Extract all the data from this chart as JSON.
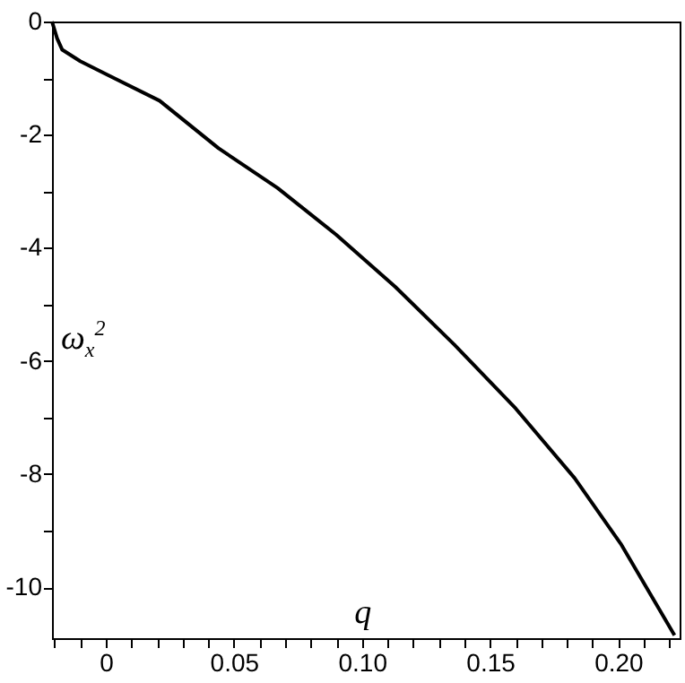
{
  "chart_data": {
    "type": "line",
    "xlabel": "q",
    "ylabel": "ω$_{x}$$^{2}$",
    "xlim": [
      -0.021,
      0.224
    ],
    "ylim": [
      -10.9,
      0
    ],
    "xticks": [
      {
        "value": -0.02,
        "label": null
      },
      {
        "value": -0.01,
        "label": null
      },
      0,
      {
        "value": 0.01,
        "label": null
      },
      {
        "value": 0.02,
        "label": null
      },
      {
        "value": 0.03,
        "label": null
      },
      {
        "value": 0.04,
        "label": null
      },
      0.05,
      {
        "value": 0.06,
        "label": null
      },
      {
        "value": 0.07,
        "label": null
      },
      {
        "value": 0.08,
        "label": null
      },
      {
        "value": 0.09,
        "label": null
      },
      {
        "value": 0.1,
        "label": "0.10"
      },
      {
        "value": 0.11,
        "label": null
      },
      {
        "value": 0.12,
        "label": null
      },
      {
        "value": 0.13,
        "label": null
      },
      {
        "value": 0.14,
        "label": null
      },
      0.15,
      {
        "value": 0.16,
        "label": null
      },
      {
        "value": 0.17,
        "label": null
      },
      {
        "value": 0.18,
        "label": null
      },
      {
        "value": 0.19,
        "label": null
      },
      {
        "value": 0.2,
        "label": "0.20"
      },
      {
        "value": 0.21,
        "label": null
      },
      {
        "value": 0.22,
        "label": null
      }
    ],
    "yticks": [
      0,
      {
        "value": -1,
        "label": null
      },
      -2,
      {
        "value": -3,
        "label": null
      },
      -4,
      {
        "value": -5,
        "label": null
      },
      -6,
      {
        "value": -7,
        "label": null
      },
      -8,
      {
        "value": -9,
        "label": null
      },
      -10
    ],
    "x": [
      -0.021,
      -0.019,
      -0.017,
      -0.01,
      0.001,
      0.021,
      0.044,
      0.067,
      0.09,
      0.113,
      0.136,
      0.16,
      0.183,
      0.201,
      0.222
    ],
    "series": [
      {
        "color": "#000000",
        "values": [
          0,
          -0.3,
          -0.5,
          -0.7,
          -0.95,
          -1.4,
          -2.24,
          -2.94,
          -3.77,
          -4.69,
          -5.71,
          -6.84,
          -8.07,
          -9.23,
          -10.85
        ]
      }
    ],
    "grid": false,
    "marker": "none",
    "line_style": "solid"
  }
}
